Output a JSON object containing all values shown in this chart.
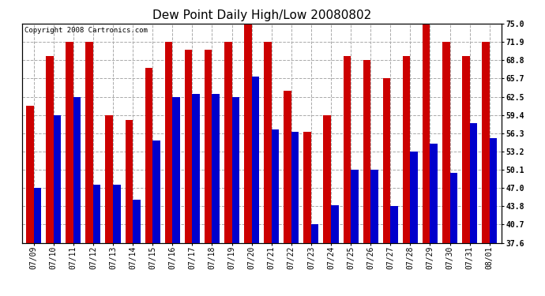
{
  "title": "Dew Point Daily High/Low 20080802",
  "copyright": "Copyright 2008 Cartronics.com",
  "dates": [
    "07/09",
    "07/10",
    "07/11",
    "07/12",
    "07/13",
    "07/14",
    "07/15",
    "07/16",
    "07/17",
    "07/18",
    "07/19",
    "07/20",
    "07/21",
    "07/22",
    "07/23",
    "07/24",
    "07/25",
    "07/26",
    "07/27",
    "07/28",
    "07/29",
    "07/30",
    "07/31",
    "08/01"
  ],
  "highs": [
    61.0,
    69.5,
    71.9,
    71.9,
    59.4,
    58.5,
    67.5,
    71.9,
    70.5,
    70.5,
    71.9,
    75.0,
    71.9,
    63.5,
    56.5,
    59.4,
    69.5,
    68.8,
    65.7,
    69.5,
    75.0,
    71.9,
    69.5,
    71.9
  ],
  "lows": [
    47.0,
    59.4,
    62.5,
    47.5,
    47.5,
    45.0,
    55.0,
    62.5,
    63.0,
    63.0,
    62.5,
    66.0,
    57.0,
    56.5,
    40.7,
    44.0,
    50.1,
    50.1,
    43.8,
    53.2,
    54.5,
    49.5,
    58.0,
    55.5
  ],
  "high_color": "#cc0000",
  "low_color": "#0000cc",
  "bg_color": "#ffffff",
  "grid_color": "#aaaaaa",
  "ymin": 37.6,
  "ymax": 75.0,
  "yticks": [
    37.6,
    40.7,
    43.8,
    47.0,
    50.1,
    53.2,
    56.3,
    59.4,
    62.5,
    65.7,
    68.8,
    71.9,
    75.0
  ],
  "title_fontsize": 11,
  "tick_fontsize": 7,
  "copyright_fontsize": 6.5
}
